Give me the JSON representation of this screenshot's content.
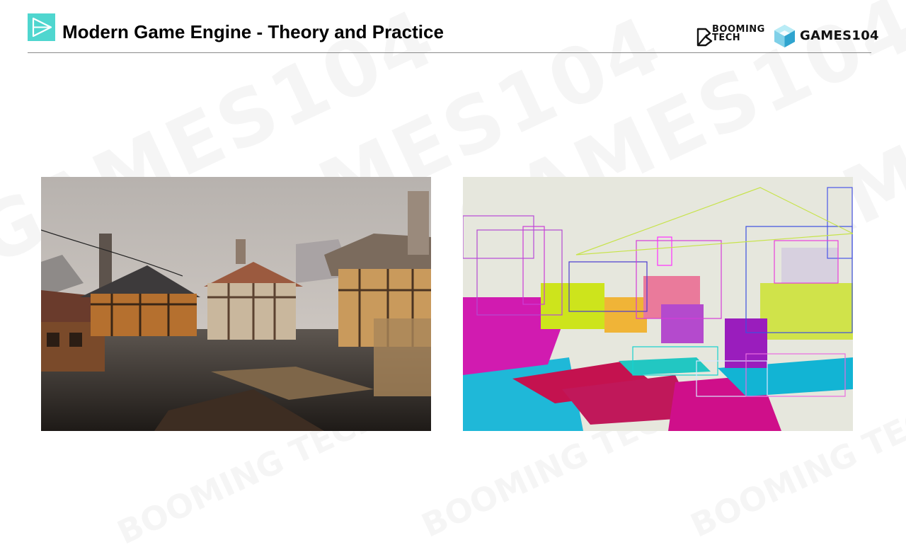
{
  "header": {
    "title": "Modern Game Engine - Theory and Practice",
    "brand_booming_line1": "BOOMING",
    "brand_booming_line2": "TECH",
    "brand_games": "GAMES104",
    "accent_color": "#4fd6cf"
  },
  "watermark": {
    "text_games": "GAMES104",
    "text_booming": "BOOMING TECH"
  },
  "images": [
    {
      "name": "lit-town-render",
      "icon": "medieval-town-shaded-image"
    },
    {
      "name": "bounding-volume-debug-render",
      "icon": "medieval-town-bounding-boxes-image"
    }
  ]
}
